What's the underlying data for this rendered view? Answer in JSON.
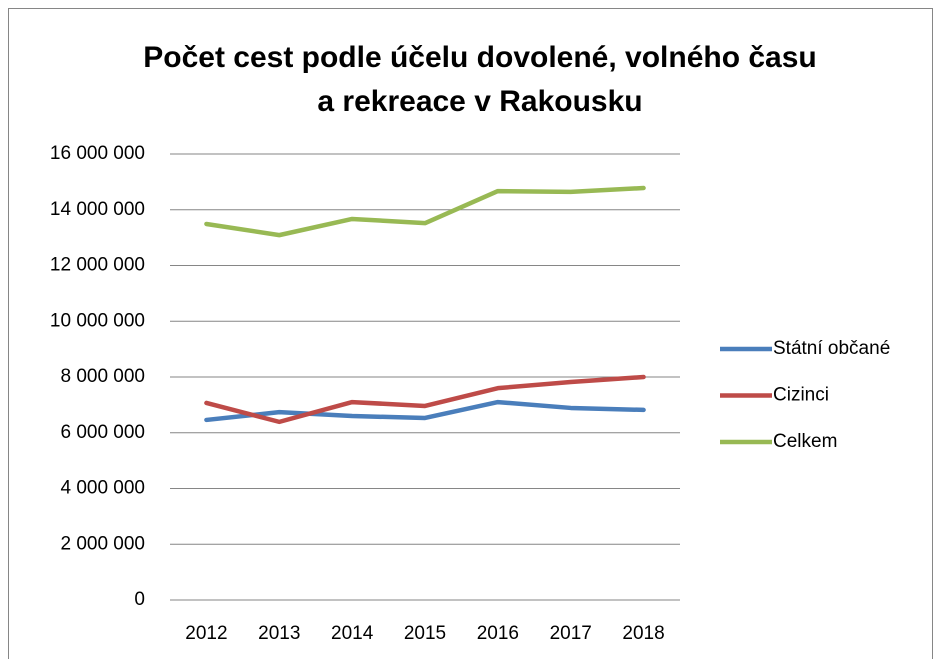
{
  "chart_data": {
    "type": "line",
    "title": [
      "Počet cest podle účelu dovolené, volného času",
      "a rekreace v Rakousku"
    ],
    "categories": [
      "2012",
      "2013",
      "2014",
      "2015",
      "2016",
      "2017",
      "2018"
    ],
    "series": [
      {
        "name": "Státní občané",
        "color": "#4a7ebb",
        "values": [
          6460000,
          6740000,
          6600000,
          6530000,
          7100000,
          6890000,
          6820000
        ]
      },
      {
        "name": "Cizinci",
        "color": "#be4b48",
        "values": [
          7070000,
          6390000,
          7100000,
          6960000,
          7600000,
          7820000,
          8000000
        ]
      },
      {
        "name": "Celkem",
        "color": "#98b954",
        "values": [
          13490000,
          13090000,
          13670000,
          13520000,
          14670000,
          14640000,
          14780000
        ]
      }
    ],
    "ylim": [
      0,
      16000000
    ],
    "yticks": [
      {
        "value": 0,
        "label": "0"
      },
      {
        "value": 2000000,
        "label": "2 000 000"
      },
      {
        "value": 4000000,
        "label": "4 000 000"
      },
      {
        "value": 6000000,
        "label": "6 000 000"
      },
      {
        "value": 8000000,
        "label": "8 000 000"
      },
      {
        "value": 10000000,
        "label": "10 000 000"
      },
      {
        "value": 12000000,
        "label": "12 000 000"
      },
      {
        "value": 14000000,
        "label": "14 000 000"
      },
      {
        "value": 16000000,
        "label": "16 000 000"
      }
    ],
    "grid": true,
    "legend": "right"
  }
}
